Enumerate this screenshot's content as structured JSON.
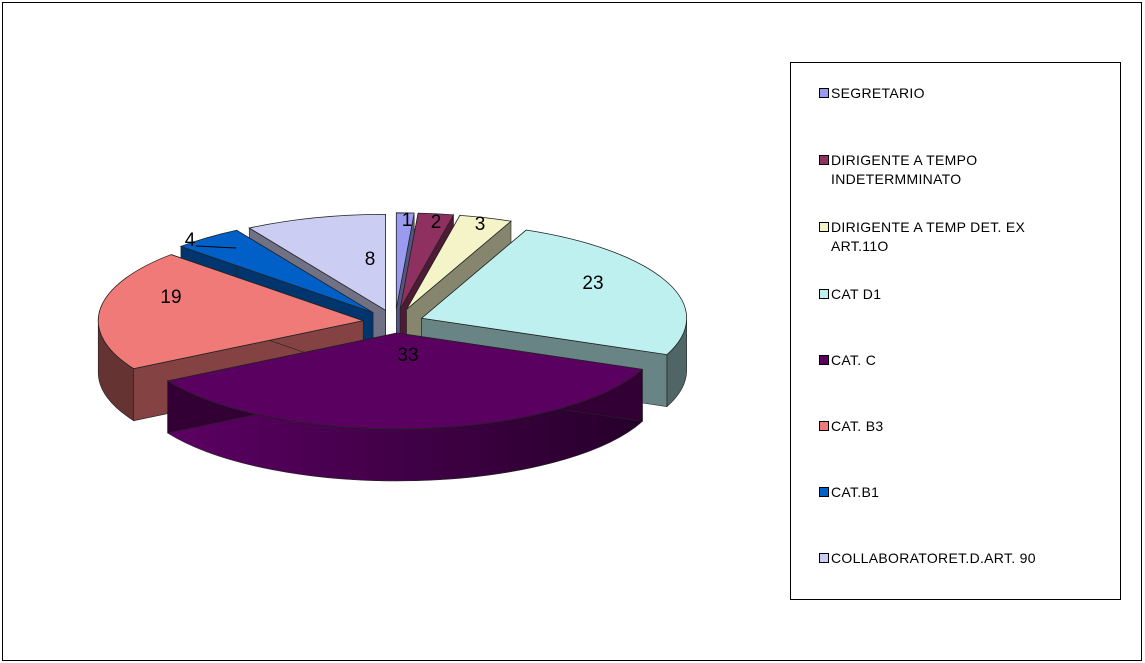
{
  "chart_data": {
    "type": "pie",
    "style": "3d-exploded",
    "title": "",
    "legend_position": "right",
    "slices": [
      {
        "label": "SEGRETARIO",
        "value": 1,
        "color": "#9a9af0"
      },
      {
        "label": "DIRIGENTE A TEMPO INDETERMMINATO",
        "value": 2,
        "color": "#8e3060"
      },
      {
        "label": "DIRIGENTE A TEMP DET. EX ART.11O",
        "value": 3,
        "color": "#f4f4c8"
      },
      {
        "label": "CAT D1",
        "value": 23,
        "color": "#bff0f0"
      },
      {
        "label": "CAT. C",
        "value": 33,
        "color": "#5a0060"
      },
      {
        "label": "CAT. B3",
        "value": 19,
        "color": "#f07a78"
      },
      {
        "label": "CAT.B1",
        "value": 4,
        "color": "#0060c8"
      },
      {
        "label": "COLLABORATORET.D.ART. 90",
        "value": 8,
        "color": "#cccdf2"
      }
    ],
    "data_labels": [
      "1",
      "2",
      "3",
      "23",
      "33",
      "19",
      "4",
      "8"
    ]
  }
}
